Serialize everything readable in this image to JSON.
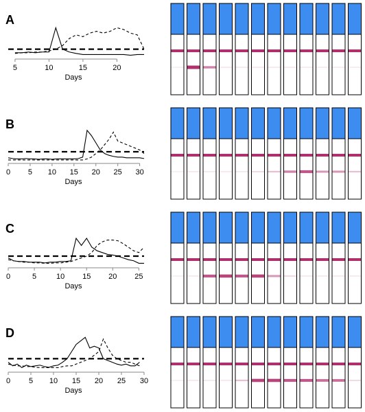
{
  "chart_data": [
    {
      "type": "line",
      "label": "A",
      "xlabel": "Days",
      "xlim": [
        4,
        24
      ],
      "xticks": [
        5,
        10,
        15,
        20
      ],
      "ylim": [
        0,
        1
      ],
      "threshold": 0.2,
      "x": [
        5,
        6,
        7,
        8,
        9,
        10,
        11,
        12,
        13,
        14,
        15,
        16,
        17,
        18,
        19,
        20,
        21,
        22,
        23,
        24
      ],
      "series": [
        {
          "style": "solid",
          "color": "#000000",
          "values": [
            0.1,
            0.1,
            0.12,
            0.1,
            0.12,
            0.12,
            0.8,
            0.2,
            0.12,
            0.08,
            0.05,
            0.05,
            0.05,
            0.05,
            0.05,
            0.05,
            0.05,
            0.03,
            0.05,
            0.05
          ]
        },
        {
          "style": "dashed",
          "color": "#000000",
          "values": [
            0.08,
            0.1,
            0.1,
            0.12,
            0.12,
            0.15,
            0.2,
            0.3,
            0.5,
            0.6,
            0.55,
            0.65,
            0.7,
            0.65,
            0.7,
            0.8,
            0.75,
            0.65,
            0.6,
            0.2
          ]
        }
      ],
      "strips": [
        0,
        1,
        0.6,
        0.1,
        0.1,
        0.1,
        0.1,
        0.1,
        0.05,
        0.05,
        0.05,
        0.05
      ]
    },
    {
      "type": "line",
      "label": "B",
      "xlabel": "Days",
      "xlim": [
        0,
        31
      ],
      "xticks": [
        0,
        5,
        10,
        15,
        20,
        25,
        30
      ],
      "ylim": [
        0,
        1
      ],
      "threshold": 0.25,
      "x": [
        0,
        1,
        2,
        3,
        4,
        5,
        6,
        7,
        8,
        9,
        10,
        11,
        12,
        13,
        14,
        15,
        16,
        17,
        18,
        19,
        20,
        21,
        22,
        23,
        24,
        25,
        26,
        27,
        28,
        29,
        30,
        31
      ],
      "series": [
        {
          "style": "solid",
          "color": "#000000",
          "values": [
            0.08,
            0.06,
            0.05,
            0.05,
            0.06,
            0.05,
            0.05,
            0.04,
            0.05,
            0.05,
            0.04,
            0.05,
            0.05,
            0.05,
            0.05,
            0.05,
            0.06,
            0.1,
            0.85,
            0.7,
            0.5,
            0.3,
            0.2,
            0.15,
            0.12,
            0.1,
            0.1,
            0.08,
            0.08,
            0.08,
            0.08,
            0.06
          ]
        },
        {
          "style": "dashed",
          "color": "#000000",
          "values": [
            0.02,
            0.02,
            0.02,
            0.02,
            0.02,
            0.02,
            0.02,
            0.02,
            0.02,
            0.02,
            0.02,
            0.02,
            0.02,
            0.02,
            0.02,
            0.02,
            0.02,
            0.02,
            0.05,
            0.1,
            0.2,
            0.3,
            0.45,
            0.6,
            0.8,
            0.55,
            0.5,
            0.45,
            0.4,
            0.35,
            0.3,
            0.2
          ]
        }
      ],
      "strips": [
        0,
        0.1,
        0.1,
        0.1,
        0.1,
        0.2,
        0.3,
        0.6,
        0.8,
        0.5,
        0.5,
        0.3
      ]
    },
    {
      "type": "line",
      "label": "C",
      "xlabel": "Days",
      "xlim": [
        0,
        26
      ],
      "xticks": [
        0,
        5,
        10,
        15,
        20,
        25
      ],
      "ylim": [
        0,
        1
      ],
      "threshold": 0.25,
      "x": [
        0,
        1,
        2,
        3,
        4,
        5,
        6,
        7,
        8,
        9,
        10,
        11,
        12,
        13,
        14,
        15,
        16,
        17,
        18,
        19,
        20,
        21,
        22,
        23,
        24,
        25,
        26
      ],
      "series": [
        {
          "style": "solid",
          "color": "#000000",
          "values": [
            0.2,
            0.12,
            0.1,
            0.1,
            0.08,
            0.08,
            0.08,
            0.06,
            0.08,
            0.08,
            0.1,
            0.1,
            0.12,
            0.75,
            0.55,
            0.75,
            0.5,
            0.4,
            0.35,
            0.3,
            0.28,
            0.25,
            0.2,
            0.15,
            0.12,
            0.05,
            0.05
          ]
        },
        {
          "style": "dashed",
          "color": "#000000",
          "values": [
            0.15,
            0.12,
            0.1,
            0.08,
            0.08,
            0.06,
            0.06,
            0.05,
            0.05,
            0.06,
            0.06,
            0.08,
            0.1,
            0.15,
            0.2,
            0.25,
            0.35,
            0.55,
            0.65,
            0.7,
            0.7,
            0.68,
            0.6,
            0.5,
            0.4,
            0.35,
            0.5
          ]
        }
      ],
      "strips": [
        0,
        0.1,
        0.8,
        0.9,
        0.8,
        0.9,
        0.5,
        0.2,
        0.1,
        0.1,
        0.1,
        0.1
      ]
    },
    {
      "type": "line",
      "label": "D",
      "xlabel": "Days",
      "xlim": [
        0,
        30
      ],
      "xticks": [
        0,
        5,
        10,
        15,
        20,
        25,
        30
      ],
      "ylim": [
        0,
        1
      ],
      "threshold": 0.3,
      "x": [
        0,
        1,
        2,
        3,
        4,
        5,
        6,
        7,
        8,
        9,
        10,
        11,
        12,
        13,
        14,
        15,
        16,
        17,
        18,
        19,
        20,
        21,
        22,
        23,
        24,
        25,
        26,
        27,
        28,
        29
      ],
      "series": [
        {
          "style": "solid",
          "color": "#000000",
          "values": [
            0.2,
            0.1,
            0.15,
            0.05,
            0.12,
            0.08,
            0.1,
            0.12,
            0.08,
            0.06,
            0.1,
            0.12,
            0.2,
            0.3,
            0.5,
            0.7,
            0.8,
            0.9,
            0.6,
            0.65,
            0.6,
            0.3,
            0.25,
            0.2,
            0.15,
            0.12,
            0.15,
            0.1,
            0.1,
            0.2
          ]
        },
        {
          "style": "dashed",
          "color": "#000000",
          "values": [
            0.15,
            0.12,
            0.1,
            0.1,
            0.08,
            0.08,
            0.06,
            0.05,
            0.05,
            0.05,
            0.05,
            0.05,
            0.08,
            0.1,
            0.1,
            0.15,
            0.2,
            0.25,
            0.3,
            0.4,
            0.5,
            0.85,
            0.6,
            0.4,
            0.3,
            0.25,
            0.2,
            0.2,
            0.15,
            0.1
          ]
        }
      ],
      "strips": [
        0,
        0.1,
        0.1,
        0.1,
        0.3,
        0.9,
        0.9,
        0.8,
        0.8,
        0.7,
        0.7,
        0.2
      ]
    }
  ]
}
